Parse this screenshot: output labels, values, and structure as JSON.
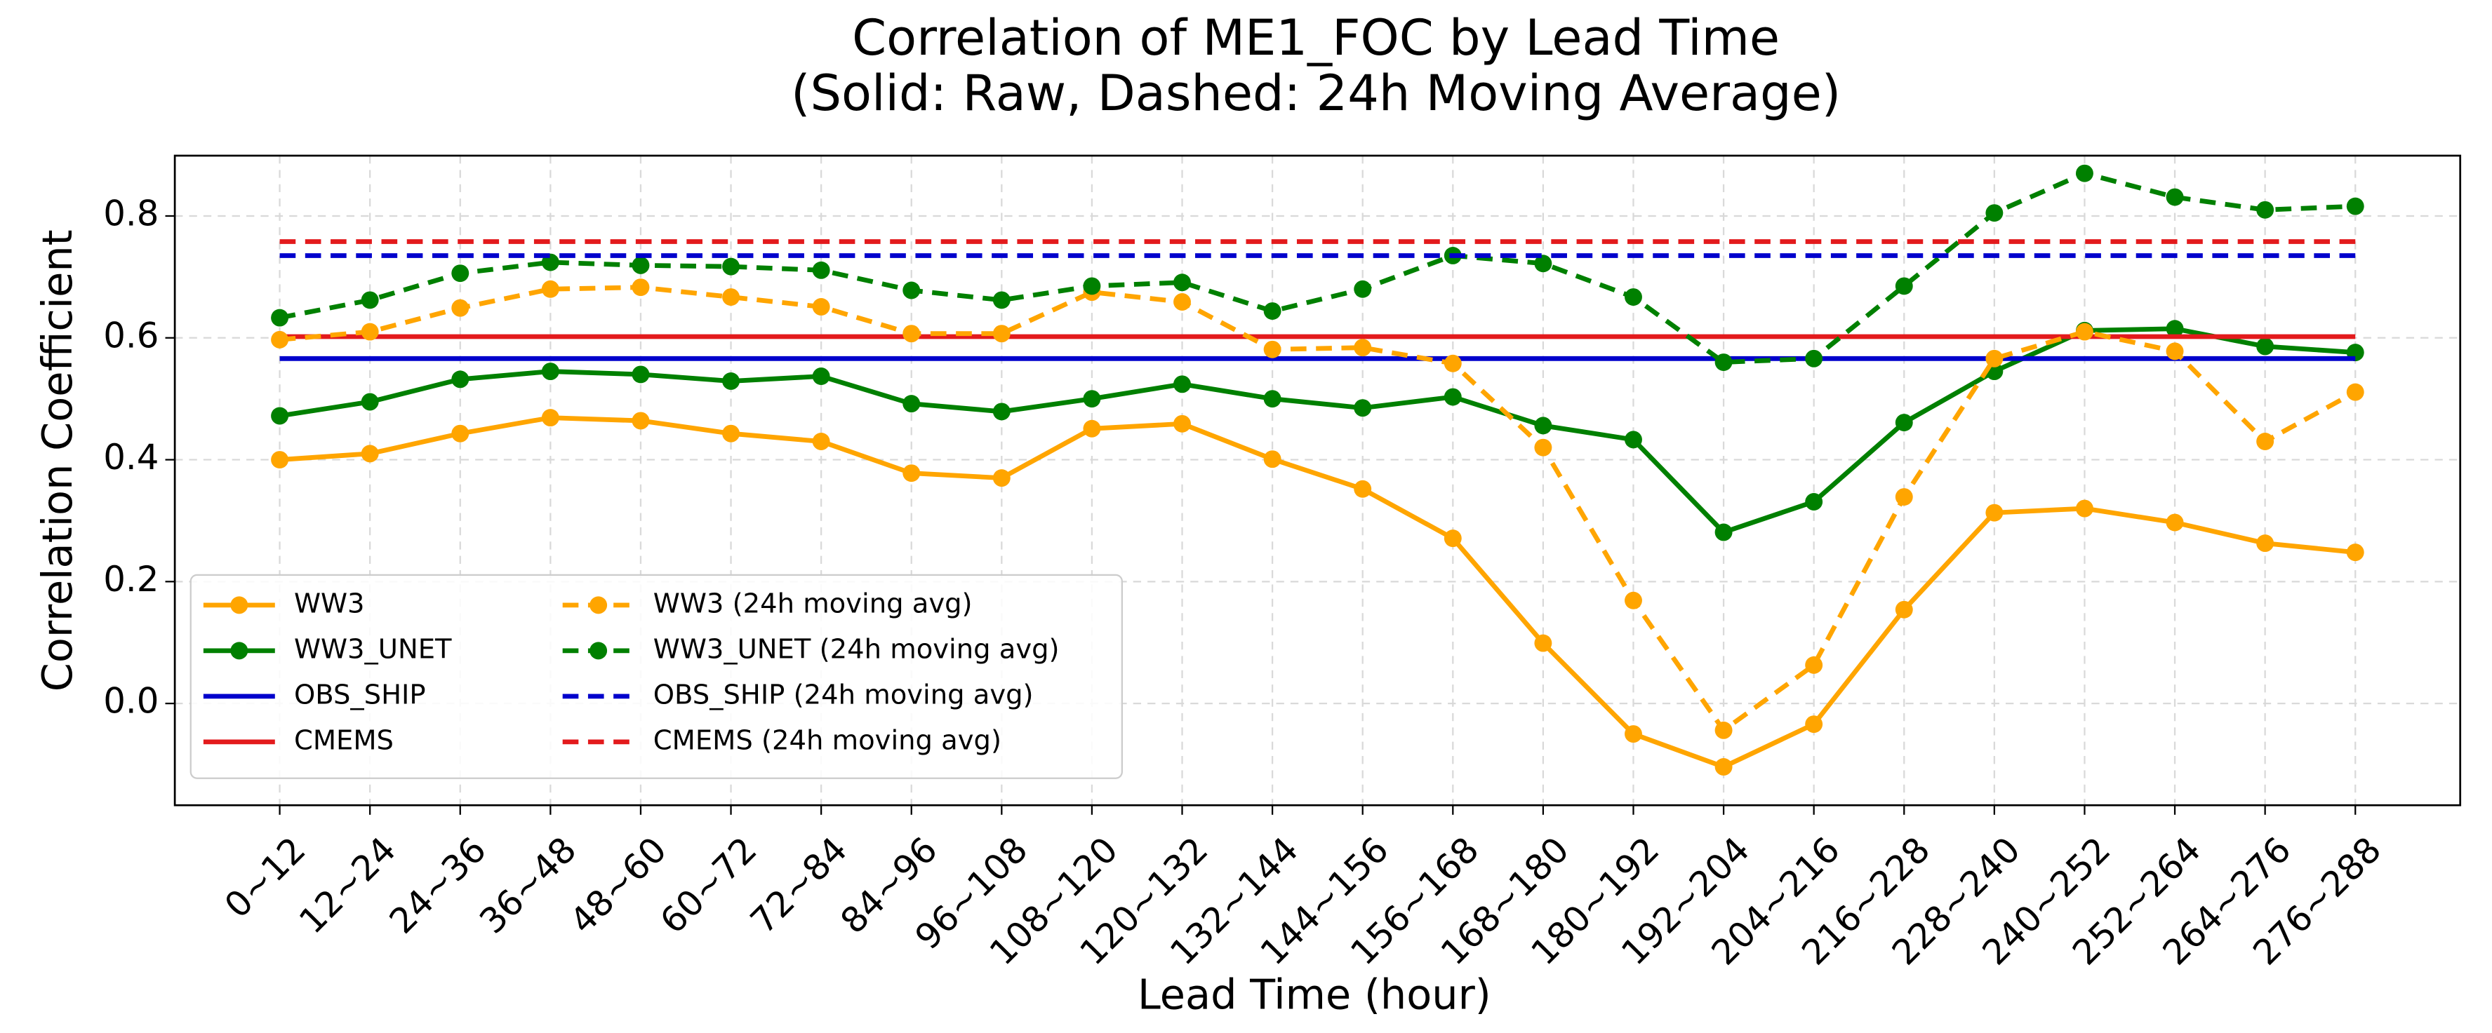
{
  "chart_data": {
    "type": "line",
    "title": "Correlation of ME1_FOC by Lead Time",
    "subtitle": "(Solid: Raw, Dashed: 24h Moving Average)",
    "x_label": "Lead Time (hour)",
    "y_label": "Correlation Coefficient",
    "categories": [
      "0~12",
      "12~24",
      "24~36",
      "36~48",
      "48~60",
      "60~72",
      "72~84",
      "84~96",
      "96~108",
      "108~120",
      "120~132",
      "132~144",
      "144~156",
      "156~168",
      "168~180",
      "180~192",
      "192~204",
      "204~216",
      "216~228",
      "228~240",
      "240~252",
      "252~264",
      "264~276",
      "276~288"
    ],
    "ylim": [
      -0.167,
      0.899
    ],
    "yticks": [
      {
        "value": 0,
        "label": "0.0"
      },
      0.2,
      0.4,
      0.6,
      0.8
    ],
    "grid": true,
    "legend": "lower left",
    "series": [
      {
        "name": "WW3",
        "color": "#ffa500",
        "linestyle": "solid",
        "marker": true,
        "values": [
          0.4,
          0.41,
          0.443,
          0.469,
          0.464,
          0.443,
          0.43,
          0.378,
          0.37,
          0.451,
          0.459,
          0.401,
          0.352,
          0.271,
          0.099,
          -0.05,
          -0.104,
          -0.034,
          0.154,
          0.313,
          0.32,
          0.297,
          0.263,
          0.248
        ]
      },
      {
        "name": "WW3_UNET",
        "color": "#008000",
        "linestyle": "solid",
        "marker": true,
        "values": [
          0.472,
          0.495,
          0.532,
          0.545,
          0.54,
          0.529,
          0.537,
          0.492,
          0.479,
          0.5,
          0.524,
          0.5,
          0.485,
          0.503,
          0.456,
          0.433,
          0.281,
          0.331,
          0.461,
          0.545,
          0.612,
          0.615,
          0.586,
          0.576
        ]
      },
      {
        "name": "OBS_SHIP",
        "color": "#0000cc",
        "linestyle": "solid",
        "marker": false,
        "values": [
          0.566,
          0.566,
          0.566,
          0.566,
          0.566,
          0.566,
          0.566,
          0.566,
          0.566,
          0.566,
          0.566,
          0.566,
          0.566,
          0.566,
          0.566,
          0.566,
          0.566,
          0.566,
          0.566,
          0.566,
          0.566,
          0.566,
          0.566,
          0.566
        ]
      },
      {
        "name": "CMEMS",
        "color": "#e31a1c",
        "linestyle": "solid",
        "marker": false,
        "values": [
          0.602,
          0.602,
          0.602,
          0.602,
          0.602,
          0.602,
          0.602,
          0.602,
          0.602,
          0.602,
          0.602,
          0.602,
          0.602,
          0.602,
          0.602,
          0.602,
          0.602,
          0.602,
          0.602,
          0.602,
          0.602,
          0.602,
          0.602,
          0.602
        ]
      },
      {
        "name": "WW3 (24h moving avg)",
        "color": "#ffa500",
        "linestyle": "dashed",
        "marker": true,
        "values": [
          0.597,
          0.61,
          0.649,
          0.68,
          0.683,
          0.667,
          0.651,
          0.607,
          0.607,
          0.675,
          0.659,
          0.581,
          0.584,
          0.558,
          0.42,
          0.169,
          -0.044,
          0.063,
          0.339,
          0.566,
          0.61,
          0.578,
          0.43,
          0.511
        ]
      },
      {
        "name": "WW3_UNET (24h moving avg)",
        "color": "#008000",
        "linestyle": "dashed",
        "marker": true,
        "values": [
          0.633,
          0.662,
          0.706,
          0.724,
          0.719,
          0.717,
          0.711,
          0.678,
          0.662,
          0.685,
          0.691,
          0.644,
          0.68,
          0.735,
          0.722,
          0.667,
          0.56,
          0.566,
          0.685,
          0.805,
          0.87,
          0.831,
          0.81,
          0.816
        ]
      },
      {
        "name": "OBS_SHIP (24h moving avg)",
        "color": "#0000cc",
        "linestyle": "dashed",
        "marker": false,
        "values": [
          0.735,
          0.735,
          0.735,
          0.735,
          0.735,
          0.735,
          0.735,
          0.735,
          0.735,
          0.735,
          0.735,
          0.735,
          0.735,
          0.735,
          0.735,
          0.735,
          0.735,
          0.735,
          0.735,
          0.735,
          0.735,
          0.735,
          0.735,
          0.735
        ]
      },
      {
        "name": "CMEMS (24h moving avg)",
        "color": "#e31a1c",
        "linestyle": "dashed",
        "marker": false,
        "values": [
          0.758,
          0.758,
          0.758,
          0.758,
          0.758,
          0.758,
          0.758,
          0.758,
          0.758,
          0.758,
          0.758,
          0.758,
          0.758,
          0.758,
          0.758,
          0.758,
          0.758,
          0.758,
          0.758,
          0.758,
          0.758,
          0.758,
          0.758,
          0.758
        ]
      }
    ]
  }
}
